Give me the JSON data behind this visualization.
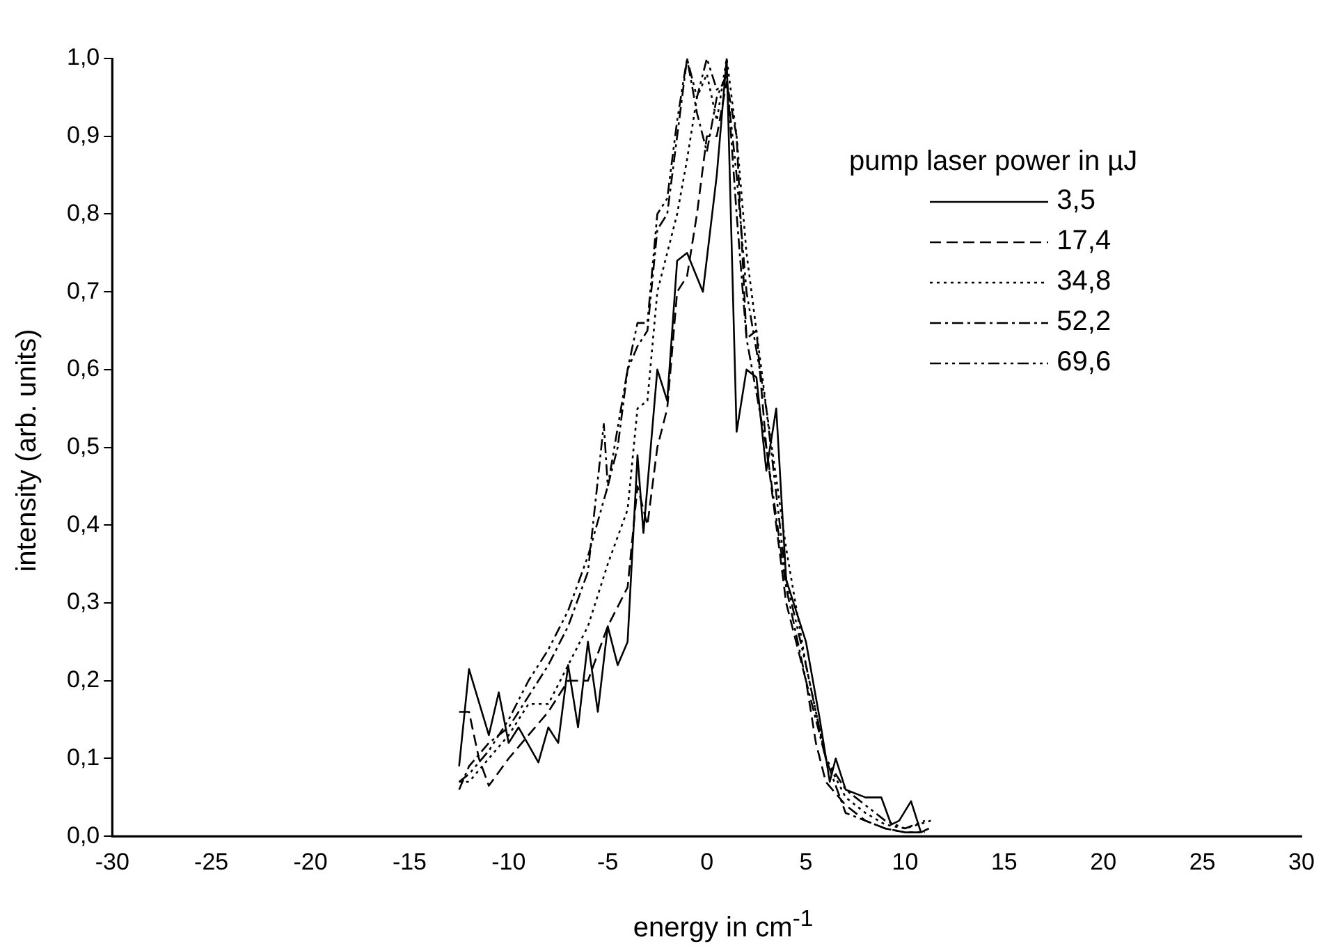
{
  "chart_data": {
    "type": "line",
    "xlabel": "energy in cm$^{-1}$",
    "ylabel": "intensity (arb. units)",
    "legend_title": "pump laser power in µJ",
    "legend": "top right",
    "grid": false,
    "marker": "none",
    "xlim": [
      -30,
      30
    ],
    "xticks": [
      -30,
      -25,
      -20,
      -15,
      -10,
      -5,
      0,
      5,
      10,
      15,
      20,
      25,
      30
    ],
    "ylim": [
      0,
      1
    ],
    "yticks": [
      {
        "value": 0,
        "label": "0,0"
      },
      {
        "value": 0.1,
        "label": "0,1"
      },
      {
        "value": 0.2,
        "label": "0,2"
      },
      {
        "value": 0.3,
        "label": "0,3"
      },
      {
        "value": 0.4,
        "label": "0,4"
      },
      {
        "value": 0.5,
        "label": "0,5"
      },
      {
        "value": 0.6,
        "label": "0,6"
      },
      {
        "value": 0.7,
        "label": "0,7"
      },
      {
        "value": 0.8,
        "label": "0,8"
      },
      {
        "value": 0.9,
        "label": "0,9"
      },
      {
        "value": 1,
        "label": "1,0"
      }
    ],
    "series": [
      {
        "name": "3,5",
        "color": "#000000",
        "line_style": "solid",
        "x": [
          -12.5,
          -12,
          -11,
          -10.5,
          -10,
          -9.5,
          -8.5,
          -8,
          -7.5,
          -7,
          -6.5,
          -6,
          -5.5,
          -5,
          -4.5,
          -4,
          -3.5,
          -3.2,
          -2.5,
          -2,
          -1.5,
          -1,
          -0.2,
          0.5,
          1,
          1.5,
          2,
          2.5,
          3,
          3.5,
          4,
          5,
          5.7,
          6.2,
          6.5,
          7,
          8,
          8.8,
          9.3,
          9.7,
          10.3,
          10.8,
          11.2
        ],
        "values": [
          0.09,
          0.215,
          0.13,
          0.185,
          0.12,
          0.14,
          0.095,
          0.14,
          0.12,
          0.22,
          0.14,
          0.25,
          0.16,
          0.27,
          0.22,
          0.25,
          0.49,
          0.39,
          0.6,
          0.56,
          0.74,
          0.75,
          0.7,
          0.85,
          1.0,
          0.52,
          0.6,
          0.59,
          0.47,
          0.55,
          0.33,
          0.25,
          0.15,
          0.07,
          0.1,
          0.06,
          0.05,
          0.05,
          0.015,
          0.02,
          0.045,
          0.005,
          0.01
        ]
      },
      {
        "name": "17,4",
        "color": "#000000",
        "line_style": "dashed",
        "x": [
          -12.5,
          -12,
          -11.5,
          -11,
          -10,
          -9,
          -8,
          -7,
          -6,
          -5,
          -4,
          -3.5,
          -3,
          -2.5,
          -2,
          -1.5,
          -1,
          -0.5,
          0,
          0.5,
          1,
          1.5,
          2,
          2.5,
          3,
          4,
          5,
          5.5,
          6,
          7,
          8,
          9,
          10,
          11
        ],
        "values": [
          0.16,
          0.16,
          0.1,
          0.065,
          0.1,
          0.13,
          0.16,
          0.2,
          0.2,
          0.27,
          0.32,
          0.45,
          0.4,
          0.5,
          0.55,
          0.7,
          0.72,
          0.8,
          0.9,
          0.9,
          0.97,
          0.9,
          0.64,
          0.65,
          0.5,
          0.3,
          0.2,
          0.12,
          0.07,
          0.04,
          0.02,
          0.01,
          0.005,
          0.005
        ]
      },
      {
        "name": "34,8",
        "color": "#000000",
        "line_style": "dotted",
        "x": [
          -12.5,
          -12,
          -11,
          -10,
          -9,
          -8,
          -7,
          -6,
          -5,
          -4,
          -3.5,
          -3,
          -2.5,
          -2,
          -1.5,
          -1,
          -0.5,
          0,
          0.5,
          1,
          1.5,
          2,
          3,
          4,
          5,
          6,
          7,
          8,
          9,
          10,
          11.3
        ],
        "values": [
          0.07,
          0.07,
          0.1,
          0.13,
          0.17,
          0.17,
          0.22,
          0.27,
          0.35,
          0.42,
          0.55,
          0.56,
          0.7,
          0.75,
          0.8,
          0.87,
          0.95,
          0.98,
          0.92,
          1.0,
          0.9,
          0.75,
          0.55,
          0.37,
          0.22,
          0.1,
          0.05,
          0.03,
          0.015,
          0.01,
          0.02
        ]
      },
      {
        "name": "52,2",
        "color": "#000000",
        "line_style": "dashdot",
        "x": [
          -12.5,
          -12,
          -11,
          -10,
          -9,
          -8,
          -7,
          -6,
          -5.2,
          -5,
          -4.5,
          -4,
          -3.5,
          -3,
          -2.5,
          -2,
          -1.5,
          -1,
          -0.5,
          0,
          0.5,
          1,
          1.5,
          2,
          3,
          4,
          5,
          6,
          7,
          8,
          9,
          10,
          11
        ],
        "values": [
          0.06,
          0.09,
          0.12,
          0.14,
          0.18,
          0.22,
          0.27,
          0.34,
          0.53,
          0.45,
          0.5,
          0.6,
          0.63,
          0.65,
          0.78,
          0.8,
          0.9,
          1.0,
          0.93,
          0.88,
          0.95,
          0.98,
          0.8,
          0.64,
          0.5,
          0.32,
          0.2,
          0.1,
          0.03,
          0.02,
          0.01,
          0.005,
          0.005
        ]
      },
      {
        "name": "69,6",
        "color": "#000000",
        "line_style": "dashdotdot",
        "x": [
          -12.5,
          -12,
          -11,
          -10,
          -9,
          -8,
          -7,
          -6,
          -5,
          -4,
          -3.5,
          -3,
          -2.5,
          -2,
          -1.5,
          -1,
          -0.5,
          0,
          0.5,
          1,
          1.5,
          2,
          3,
          4,
          5,
          6,
          7,
          8,
          9,
          10,
          11
        ],
        "values": [
          0.07,
          0.08,
          0.11,
          0.15,
          0.2,
          0.24,
          0.29,
          0.36,
          0.45,
          0.6,
          0.66,
          0.66,
          0.8,
          0.82,
          0.92,
          1.0,
          0.95,
          1.0,
          0.96,
          0.97,
          0.85,
          0.7,
          0.55,
          0.33,
          0.22,
          0.1,
          0.06,
          0.04,
          0.02,
          0.01,
          0.02
        ]
      }
    ]
  }
}
